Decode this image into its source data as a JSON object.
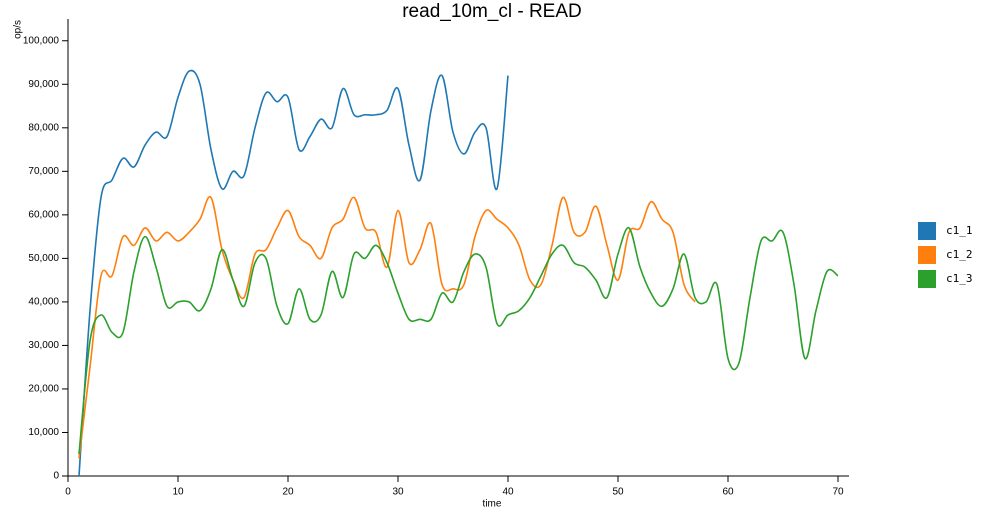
{
  "chart_data": {
    "type": "line",
    "title": "read_10m_cl - READ",
    "x_label": "time",
    "y_label": "op/s",
    "x": [
      1,
      2,
      3,
      4,
      5,
      6,
      7,
      8,
      9,
      10,
      11,
      12,
      13,
      14,
      15,
      16,
      17,
      18,
      19,
      20,
      21,
      22,
      23,
      24,
      25,
      26,
      27,
      28,
      29,
      30,
      31,
      32,
      33,
      34,
      35,
      36,
      37,
      38,
      39,
      40,
      41,
      42,
      43,
      44,
      45,
      46,
      47,
      48,
      49,
      50,
      51,
      52,
      53,
      54,
      55,
      56,
      57,
      58,
      59,
      60,
      61,
      62,
      63,
      64,
      65,
      66,
      67,
      68,
      69,
      70
    ],
    "xlim": [
      0,
      71
    ],
    "xticks": [
      0,
      10,
      20,
      30,
      40,
      50,
      60,
      70
    ],
    "ylim": [
      0,
      105000
    ],
    "yticks": [
      0,
      {
        "value": 10000,
        "label": "10,000"
      },
      {
        "value": 20000,
        "label": "20,000"
      },
      {
        "value": 30000,
        "label": "30,000"
      },
      {
        "value": 40000,
        "label": "40,000"
      },
      {
        "value": 50000,
        "label": "50,000"
      },
      {
        "value": 60000,
        "label": "60,000"
      },
      {
        "value": 70000,
        "label": "70,000"
      },
      {
        "value": 80000,
        "label": "80,000"
      },
      {
        "value": 90000,
        "label": "90,000"
      },
      {
        "value": 100000,
        "label": "100,000"
      }
    ],
    "grid": false,
    "series": [
      {
        "name": "c1_1",
        "color": "#1f77b4",
        "values": [
          0,
          38000,
          64000,
          68000,
          73000,
          71000,
          76000,
          79000,
          78000,
          87000,
          93000,
          90000,
          75000,
          66000,
          70000,
          69000,
          80000,
          88000,
          86000,
          87000,
          75000,
          78000,
          82000,
          80000,
          89000,
          83000,
          83000,
          83000,
          84000,
          89000,
          76000,
          68000,
          84000,
          92000,
          79000,
          74000,
          79000,
          80000,
          66000,
          92000,
          null,
          null,
          null,
          null,
          null,
          null,
          null,
          null,
          null,
          null,
          null,
          null,
          null,
          null,
          null,
          null,
          null,
          null,
          null,
          null,
          null,
          null,
          null,
          null,
          null,
          null,
          null,
          null,
          null,
          null
        ]
      },
      {
        "name": "c1_2",
        "color": "#ff7f0e",
        "values": [
          4000,
          25000,
          46000,
          46000,
          55000,
          53000,
          57000,
          54000,
          56000,
          54000,
          56000,
          59000,
          64000,
          52000,
          45000,
          41000,
          51000,
          52000,
          57000,
          61000,
          55000,
          53000,
          50000,
          57000,
          59000,
          64000,
          57000,
          56000,
          48000,
          61000,
          49000,
          52000,
          58000,
          44000,
          43000,
          44000,
          55000,
          61000,
          59000,
          57000,
          53000,
          45000,
          44000,
          53000,
          64000,
          56000,
          56000,
          62000,
          53000,
          45000,
          56000,
          57000,
          63000,
          59000,
          56000,
          44000,
          40000,
          null,
          null,
          null,
          null,
          null,
          null,
          null,
          null,
          null,
          null,
          null,
          null,
          null
        ]
      },
      {
        "name": "c1_3",
        "color": "#2ca02c",
        "values": [
          5000,
          31000,
          37000,
          33000,
          33000,
          47000,
          55000,
          48000,
          39000,
          40000,
          40000,
          38000,
          43000,
          52000,
          45000,
          39000,
          49000,
          50000,
          39000,
          35000,
          43000,
          36000,
          37000,
          47000,
          41000,
          51000,
          50000,
          53000,
          49000,
          42000,
          36000,
          36000,
          36000,
          42000,
          40000,
          47000,
          51000,
          48000,
          35000,
          37000,
          38000,
          41000,
          46000,
          51000,
          53000,
          49000,
          48000,
          45000,
          41000,
          51000,
          57000,
          48000,
          42000,
          39000,
          43000,
          51000,
          41000,
          40000,
          44000,
          27000,
          26000,
          41000,
          54000,
          54000,
          56000,
          44000,
          27000,
          38000,
          47000,
          46000
        ]
      }
    ]
  }
}
